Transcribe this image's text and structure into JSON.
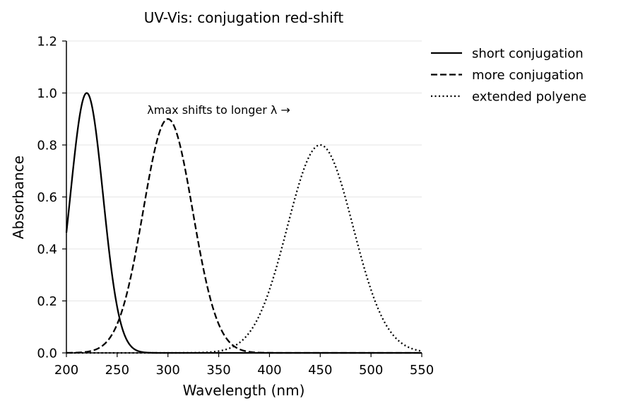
{
  "chart_data": {
    "type": "line",
    "title": "UV-Vis: conjugation red-shift",
    "xlabel": "Wavelength (nm)",
    "ylabel": "Absorbance",
    "xlim": [
      200,
      550
    ],
    "ylim": [
      0,
      1.2
    ],
    "xticks": [
      200,
      250,
      300,
      350,
      400,
      450,
      500,
      550
    ],
    "xtick_labels": [
      "200",
      "250",
      "300",
      "350",
      "400",
      "450",
      "500",
      "550"
    ],
    "yticks": [
      0,
      0.2,
      0.4,
      0.6,
      0.8,
      1.0,
      1.2
    ],
    "ytick_labels": [
      "0.0",
      "0.2",
      "0.4",
      "0.6",
      "0.8",
      "1.0",
      "1.2"
    ],
    "grid": "horizontal",
    "legend_position": "outside-top-right",
    "line_color": "#000000",
    "annotation": {
      "text": "λmax shifts to longer λ →",
      "x": 350,
      "y": 0.96
    },
    "series": [
      {
        "name": "short conjugation",
        "style": "solid",
        "peak_x": 220,
        "peak_y": 1.0,
        "x": [
          200,
          205,
          210,
          215,
          220,
          225,
          230,
          235,
          240,
          245,
          250,
          255,
          260,
          265,
          270,
          280,
          290,
          300,
          550
        ],
        "y": [
          0.44,
          0.67,
          0.88,
          0.99,
          1.0,
          0.97,
          0.86,
          0.67,
          0.47,
          0.29,
          0.16,
          0.08,
          0.04,
          0.015,
          0.006,
          0.001,
          0.0,
          0.0,
          0.0
        ]
      },
      {
        "name": "more conjugation",
        "style": "dashed",
        "peak_x": 300,
        "peak_y": 0.9,
        "x": [
          200,
          220,
          230,
          240,
          250,
          260,
          270,
          280,
          290,
          300,
          310,
          320,
          330,
          340,
          350,
          360,
          370,
          380,
          550
        ],
        "y": [
          0.0,
          0.002,
          0.01,
          0.03,
          0.09,
          0.22,
          0.42,
          0.66,
          0.85,
          0.9,
          0.85,
          0.66,
          0.42,
          0.22,
          0.09,
          0.03,
          0.01,
          0.002,
          0.0
        ]
      },
      {
        "name": "extended polyene",
        "style": "dotted",
        "peak_x": 450,
        "peak_y": 0.8,
        "x": [
          200,
          350,
          360,
          370,
          380,
          390,
          400,
          410,
          420,
          430,
          440,
          450,
          460,
          470,
          480,
          490,
          500,
          510,
          520,
          530,
          540,
          550
        ],
        "y": [
          0.0,
          0.0,
          0.006,
          0.02,
          0.05,
          0.12,
          0.22,
          0.37,
          0.53,
          0.68,
          0.77,
          0.8,
          0.77,
          0.68,
          0.53,
          0.37,
          0.22,
          0.12,
          0.05,
          0.02,
          0.006,
          0.001
        ]
      }
    ]
  }
}
